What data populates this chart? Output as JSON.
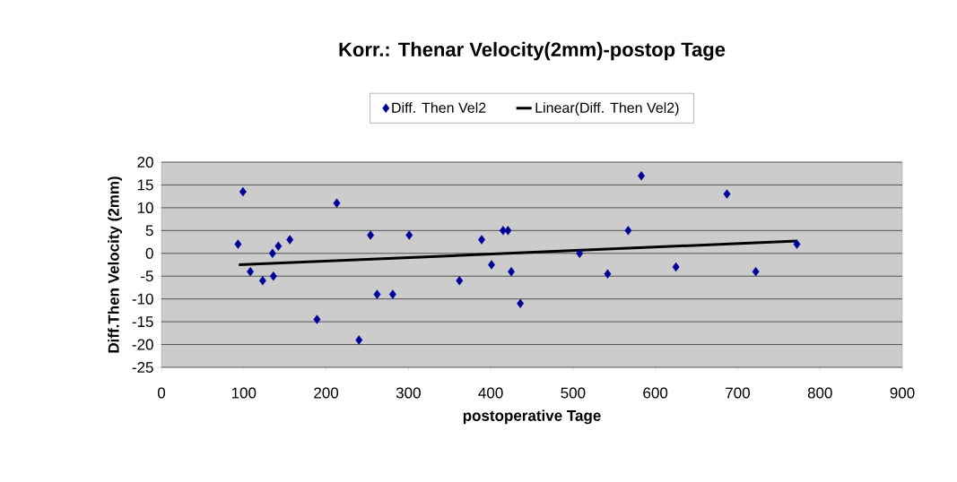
{
  "chart_data": {
    "type": "scatter",
    "title": "Korr.: Thenar Velocity(2mm)-postop Tage",
    "xlabel": "postoperative Tage",
    "ylabel": "Diff.Then Velocity (2mm)",
    "xlim": [
      0,
      900
    ],
    "xticks": [
      0,
      100,
      200,
      300,
      400,
      500,
      600,
      700,
      800,
      900
    ],
    "ylim": [
      -25,
      20
    ],
    "yticks": [
      -25,
      -20,
      -15,
      -10,
      -5,
      0,
      5,
      10,
      15,
      20
    ],
    "grid": "y",
    "legend": "top",
    "series": [
      {
        "name": "Diff. Then Vel2",
        "color": "#000099",
        "marker": "diamond",
        "x": [
          93,
          99,
          108,
          123,
          136,
          135,
          142,
          156,
          189,
          213,
          240,
          254,
          262,
          281,
          301,
          362,
          389,
          401,
          415,
          421,
          425,
          436,
          508,
          542,
          567,
          583,
          625,
          687,
          722,
          772
        ],
        "values": [
          2,
          13.5,
          -4,
          -6,
          -5,
          0,
          1.6,
          3,
          -14.5,
          11,
          -19,
          4,
          -9,
          -9,
          4,
          -6,
          3,
          -2.5,
          5,
          5,
          -4,
          -11,
          0,
          -4.5,
          5,
          17,
          -3,
          13,
          -4,
          2
        ]
      },
      {
        "name": "Linear(Diff. Then Vel2)",
        "type": "line",
        "marker": "none",
        "line_style": "solid",
        "color": "#000000",
        "x": [
          94,
          772
        ],
        "values": [
          -2.5,
          2.7
        ]
      }
    ]
  }
}
